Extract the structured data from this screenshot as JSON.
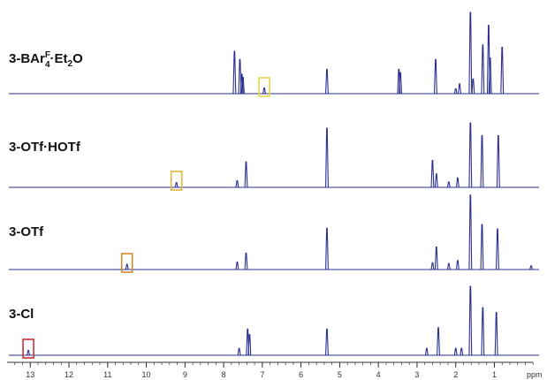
{
  "chart_data": {
    "type": "line",
    "title": "",
    "xlabel": "ppm",
    "ylabel": "",
    "x_axis": {
      "reversed": true,
      "range": [
        13.6,
        -0.2
      ],
      "major_ticks": [
        13,
        12,
        11,
        10,
        9,
        8,
        7,
        6,
        5,
        4,
        3,
        2,
        1
      ],
      "tick_labels": [
        "13",
        "12",
        "11",
        "10",
        "9",
        "8",
        "7",
        "6",
        "5",
        "4",
        "3",
        "2",
        "1"
      ],
      "unit": "ppm"
    },
    "grid": false,
    "legend": "none",
    "line_color": "#2a2f8f",
    "series": [
      {
        "label_main": "3-BAr",
        "label_sup": "F",
        "label_mid": "4",
        "label_dot": "·Et",
        "label_sub2": "2",
        "label_end": "O",
        "baseline": 106,
        "scale": 92,
        "highlight": {
          "ppm": 6.95,
          "color": "#e8d44a"
        },
        "peaks": [
          {
            "ppm": 7.72,
            "h": 0.52
          },
          {
            "ppm": 7.58,
            "h": 0.42
          },
          {
            "ppm": 7.53,
            "h": 0.24
          },
          {
            "ppm": 7.5,
            "h": 0.2
          },
          {
            "ppm": 6.95,
            "h": 0.07
          },
          {
            "ppm": 5.33,
            "h": 0.3
          },
          {
            "ppm": 3.47,
            "h": 0.3
          },
          {
            "ppm": 3.43,
            "h": 0.26
          },
          {
            "ppm": 2.52,
            "h": 0.42
          },
          {
            "ppm": 2.0,
            "h": 0.06
          },
          {
            "ppm": 1.9,
            "h": 0.12
          },
          {
            "ppm": 1.62,
            "h": 1.0
          },
          {
            "ppm": 1.55,
            "h": 0.18
          },
          {
            "ppm": 1.3,
            "h": 0.6
          },
          {
            "ppm": 1.15,
            "h": 0.84
          },
          {
            "ppm": 1.11,
            "h": 0.44
          },
          {
            "ppm": 0.8,
            "h": 0.57
          }
        ]
      },
      {
        "label": "3-OTf·HOTf",
        "baseline": 212,
        "scale": 76,
        "highlight": {
          "ppm": 9.22,
          "color": "#e0b53a"
        },
        "peaks": [
          {
            "ppm": 9.22,
            "h": 0.07
          },
          {
            "ppm": 7.65,
            "h": 0.1
          },
          {
            "ppm": 7.42,
            "h": 0.38
          },
          {
            "ppm": 5.33,
            "h": 0.88
          },
          {
            "ppm": 2.6,
            "h": 0.4
          },
          {
            "ppm": 2.5,
            "h": 0.2
          },
          {
            "ppm": 2.18,
            "h": 0.08
          },
          {
            "ppm": 1.95,
            "h": 0.14
          },
          {
            "ppm": 1.62,
            "h": 0.96
          },
          {
            "ppm": 1.32,
            "h": 0.77
          },
          {
            "ppm": 0.9,
            "h": 0.77
          }
        ]
      },
      {
        "label": "3-OTf",
        "baseline": 305,
        "scale": 85,
        "highlight": {
          "ppm": 10.5,
          "color": "#d08a2a"
        },
        "peaks": [
          {
            "ppm": 10.5,
            "h": 0.07
          },
          {
            "ppm": 7.65,
            "h": 0.1
          },
          {
            "ppm": 7.42,
            "h": 0.22
          },
          {
            "ppm": 5.33,
            "h": 0.55
          },
          {
            "ppm": 2.6,
            "h": 0.09
          },
          {
            "ppm": 2.5,
            "h": 0.3
          },
          {
            "ppm": 2.18,
            "h": 0.08
          },
          {
            "ppm": 1.95,
            "h": 0.12
          },
          {
            "ppm": 1.62,
            "h": 0.99
          },
          {
            "ppm": 1.32,
            "h": 0.6
          },
          {
            "ppm": 0.92,
            "h": 0.54
          },
          {
            "ppm": 0.05,
            "h": 0.05
          }
        ]
      },
      {
        "label": "3-Cl",
        "baseline": 402,
        "scale": 78,
        "highlight": {
          "ppm": 13.05,
          "color": "#cc3333"
        },
        "peaks": [
          {
            "ppm": 13.05,
            "h": 0.07
          },
          {
            "ppm": 7.6,
            "h": 0.1
          },
          {
            "ppm": 7.38,
            "h": 0.38
          },
          {
            "ppm": 7.33,
            "h": 0.3
          },
          {
            "ppm": 5.33,
            "h": 0.38
          },
          {
            "ppm": 2.75,
            "h": 0.1
          },
          {
            "ppm": 2.45,
            "h": 0.4
          },
          {
            "ppm": 2.0,
            "h": 0.1
          },
          {
            "ppm": 1.85,
            "h": 0.1
          },
          {
            "ppm": 1.62,
            "h": 1.0
          },
          {
            "ppm": 1.3,
            "h": 0.69
          },
          {
            "ppm": 0.95,
            "h": 0.62
          }
        ]
      }
    ]
  }
}
